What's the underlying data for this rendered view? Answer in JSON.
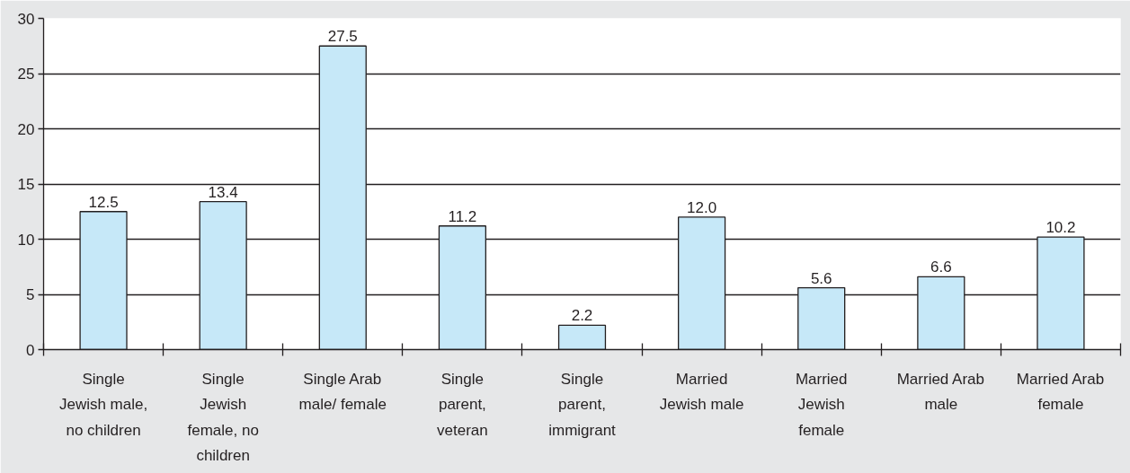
{
  "chart_data": {
    "type": "bar",
    "categories": [
      "Single\nJewish male,\nno children",
      "Single\nJewish\nfemale, no\nchildren",
      "Single Arab\nmale/ female",
      "Single\nparent,\nveteran",
      "Single\nparent,\nimmigrant",
      "Married\nJewish male",
      "Married\nJewish\nfemale",
      "Married Arab\nmale",
      "Married Arab\nfemale"
    ],
    "values": [
      12.5,
      13.4,
      27.5,
      11.2,
      2.2,
      12.0,
      5.6,
      6.6,
      10.2
    ],
    "value_labels": [
      "12.5",
      "13.4",
      "27.5",
      "11.2",
      "2.2",
      "12.0",
      "5.6",
      "6.6",
      "10.2"
    ],
    "color": "#c6e8f8",
    "ylim": [
      0,
      30
    ],
    "yticks": [
      0,
      5,
      10,
      15,
      20,
      25,
      30
    ],
    "grid": "y"
  }
}
